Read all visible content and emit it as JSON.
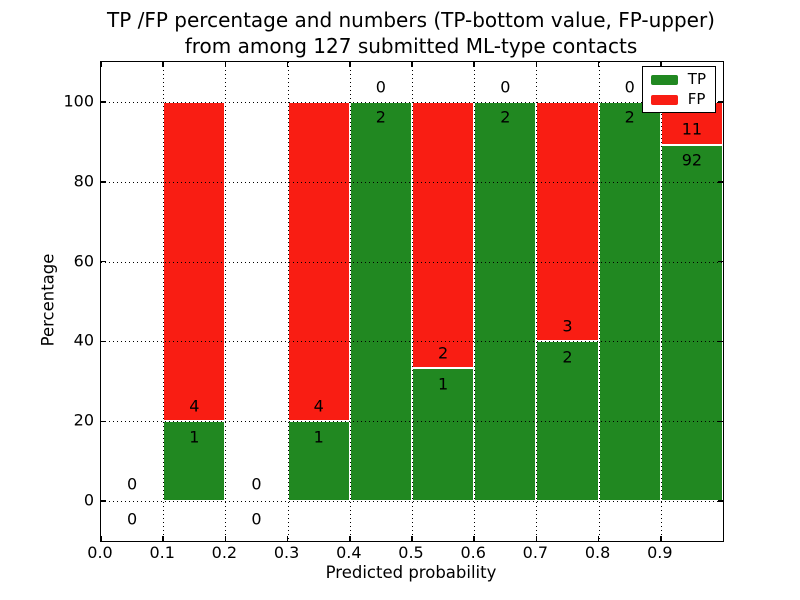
{
  "figure": {
    "title_line1": "TP /FP percentage and numbers (TP-bottom value, FP-upper)",
    "title_line2": "from among 127 submitted ML-type contacts",
    "xlabel": "Predicted probability",
    "ylabel": "Percentage",
    "background": "#ffffff"
  },
  "legend": {
    "items": [
      {
        "label": "TP",
        "color": "#218821"
      },
      {
        "label": "FP",
        "color": "#f91d13"
      }
    ]
  },
  "chart_data": {
    "type": "bar",
    "stacked": true,
    "title": "TP /FP percentage and numbers (TP-bottom value, FP-upper) from among 127 submitted ML-type contacts",
    "xlabel": "Predicted probability",
    "ylabel": "Percentage",
    "total_contacts": 127,
    "xlim": [
      0.0,
      1.0
    ],
    "ylim": [
      -10,
      110
    ],
    "xtick_labels": [
      "0.0",
      "0.1",
      "0.2",
      "0.3",
      "0.4",
      "0.5",
      "0.6",
      "0.7",
      "0.8",
      "0.9"
    ],
    "xtick_values": [
      0.0,
      0.1,
      0.2,
      0.3,
      0.4,
      0.5,
      0.6,
      0.7,
      0.8,
      0.9
    ],
    "ytick_labels": [
      "0",
      "20",
      "40",
      "60",
      "80",
      "100"
    ],
    "ytick_values": [
      0,
      20,
      40,
      60,
      80,
      100
    ],
    "grid": "dotted, both axes, drawn over bars",
    "legend_position": "upper right",
    "bar_edge_color": "#ffffff",
    "bin_edges": [
      0.0,
      0.1,
      0.2,
      0.3,
      0.4,
      0.5,
      0.6,
      0.7,
      0.8,
      0.9,
      1.0
    ],
    "series": [
      {
        "name": "TP",
        "color": "#218821",
        "counts": [
          0,
          1,
          0,
          1,
          2,
          1,
          2,
          2,
          2,
          92
        ],
        "pct": [
          0,
          20,
          0,
          20,
          100,
          33.33,
          100,
          40,
          100,
          89.32
        ]
      },
      {
        "name": "FP",
        "color": "#f91d13",
        "counts": [
          0,
          4,
          0,
          4,
          0,
          2,
          0,
          3,
          0,
          11
        ],
        "pct": [
          0,
          80,
          0,
          80,
          0,
          66.67,
          0,
          60,
          0,
          10.68
        ]
      }
    ]
  }
}
